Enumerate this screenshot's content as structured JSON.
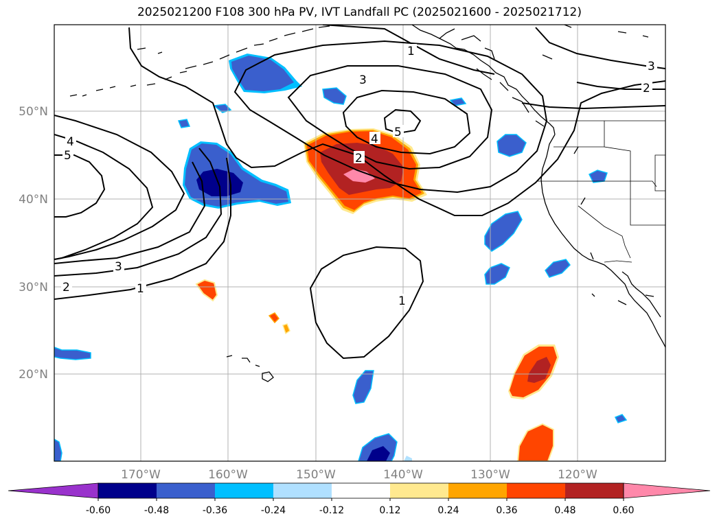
{
  "title": "2025021200 F108 300 hPa PV, IVT Landfall PC (2025021600 - 2025021712)",
  "lat_labels": [
    "50°N",
    "40°N",
    "30°N",
    "20°N"
  ],
  "lon_labels": [
    "170°W",
    "160°W",
    "150°W",
    "140°W",
    "130°W",
    "120°W"
  ],
  "contour_labels": {
    "c1_north": "1",
    "c3_north": "3",
    "c5_center": "5",
    "c4_center": "4",
    "c2_center": "2",
    "c3_ne": "3",
    "c2_ne": "2",
    "c4_west": "4",
    "c5_west": "5",
    "c3_sw": "3",
    "c2_sw": "2",
    "c1_sw": "1",
    "c1_south": "1"
  },
  "colorbar": {
    "colors": [
      "#9932cc",
      "#00008b",
      "#3a5fcd",
      "#00bfff",
      "#b0e0ff",
      "#ffffff",
      "#ffe98f",
      "#ffa500",
      "#ff4500",
      "#b22222",
      "#ff88aa"
    ],
    "labels": [
      "-0.60",
      "-0.48",
      "-0.36",
      "-0.24",
      "-0.12",
      "0.12",
      "0.24",
      "0.36",
      "0.48",
      "0.60"
    ]
  }
}
